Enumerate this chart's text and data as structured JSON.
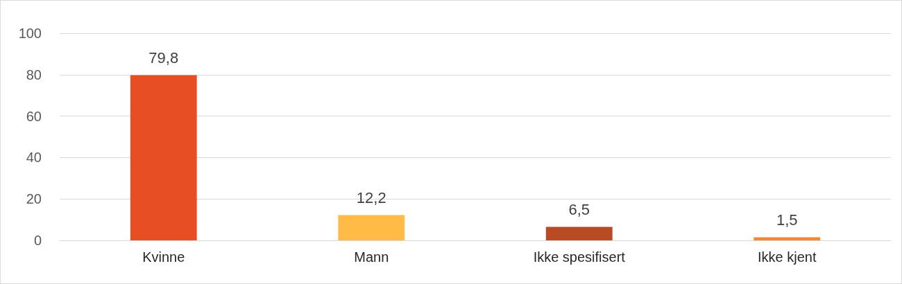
{
  "chart_data": {
    "type": "bar",
    "categories": [
      "Kvinne",
      "Mann",
      "Ikke spesifisert",
      "Ikke kjent"
    ],
    "values": [
      79.8,
      12.2,
      6.5,
      1.5
    ],
    "colors": [
      "#e84e24",
      "#ffbb45",
      "#b84a24",
      "#f08a30"
    ],
    "value_labels": [
      "79,8",
      "12,2",
      "6,5",
      "1,5"
    ],
    "ylim": [
      0,
      100
    ],
    "yticks": [
      0,
      20,
      40,
      60,
      80,
      100
    ],
    "grid": "y"
  }
}
